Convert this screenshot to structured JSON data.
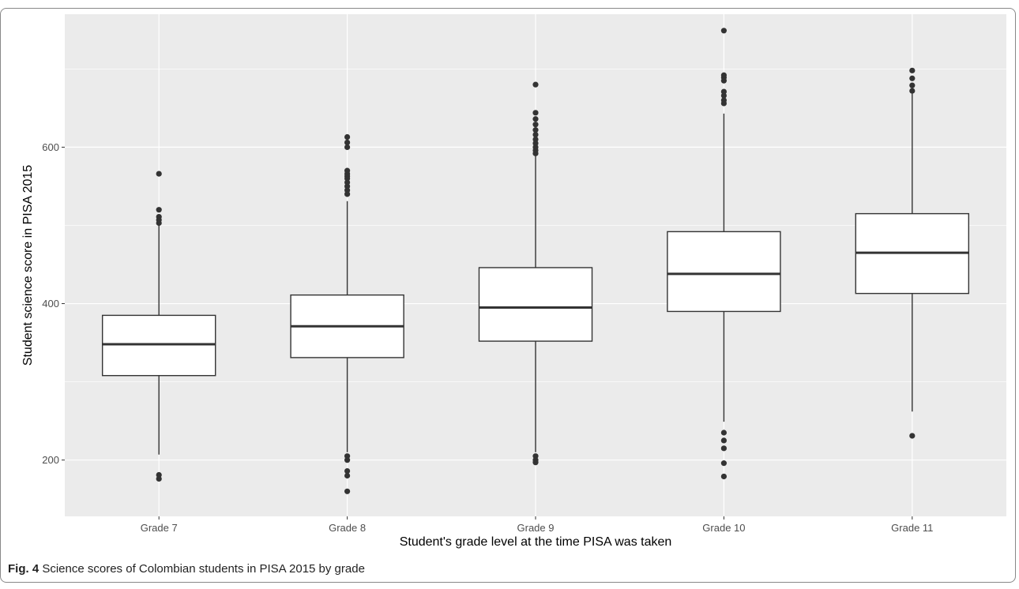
{
  "caption": {
    "label": "Fig. 4",
    "text": "Science scores of Colombian students in PISA 2015 by grade"
  },
  "colors": {
    "panel_background": "#ebebeb",
    "grid": "#ffffff",
    "box_fill": "#ffffff",
    "box_stroke": "#333333",
    "outlier": "#333333"
  },
  "chart_data": {
    "type": "boxplot",
    "title": "",
    "xlabel": "Student's grade level at the time PISA was taken",
    "ylabel": "Student science score in PISA 2015",
    "ylim": [
      128,
      770
    ],
    "yticks": [
      200,
      400,
      600
    ],
    "grid": true,
    "categories": [
      "Grade 7",
      "Grade 8",
      "Grade 9",
      "Grade 10",
      "Grade 11"
    ],
    "boxes": [
      {
        "category": "Grade 7",
        "whisker_low": 207,
        "q1": 308,
        "median": 348,
        "q3": 385,
        "whisker_high": 500,
        "outliers": [
          181,
          176,
          503,
          507,
          511,
          520,
          566
        ]
      },
      {
        "category": "Grade 8",
        "whisker_low": 210,
        "q1": 331,
        "median": 371,
        "q3": 411,
        "whisker_high": 531,
        "outliers": [
          160,
          180,
          186,
          200,
          205,
          540,
          545,
          550,
          555,
          560,
          563,
          566,
          570,
          600,
          606,
          613
        ]
      },
      {
        "category": "Grade 9",
        "whisker_low": 210,
        "q1": 352,
        "median": 395,
        "q3": 446,
        "whisker_high": 589,
        "outliers": [
          197,
          200,
          205,
          592,
          596,
          600,
          605,
          610,
          616,
          622,
          629,
          636,
          644,
          680
        ]
      },
      {
        "category": "Grade 10",
        "whisker_low": 249,
        "q1": 390,
        "median": 438,
        "q3": 492,
        "whisker_high": 643,
        "outliers": [
          179,
          196,
          215,
          225,
          235,
          656,
          660,
          666,
          671,
          685,
          689,
          692,
          749
        ]
      },
      {
        "category": "Grade 11",
        "whisker_low": 262,
        "q1": 413,
        "median": 465,
        "q3": 515,
        "whisker_high": 669,
        "outliers": [
          231,
          672,
          679,
          688,
          698
        ]
      }
    ]
  }
}
